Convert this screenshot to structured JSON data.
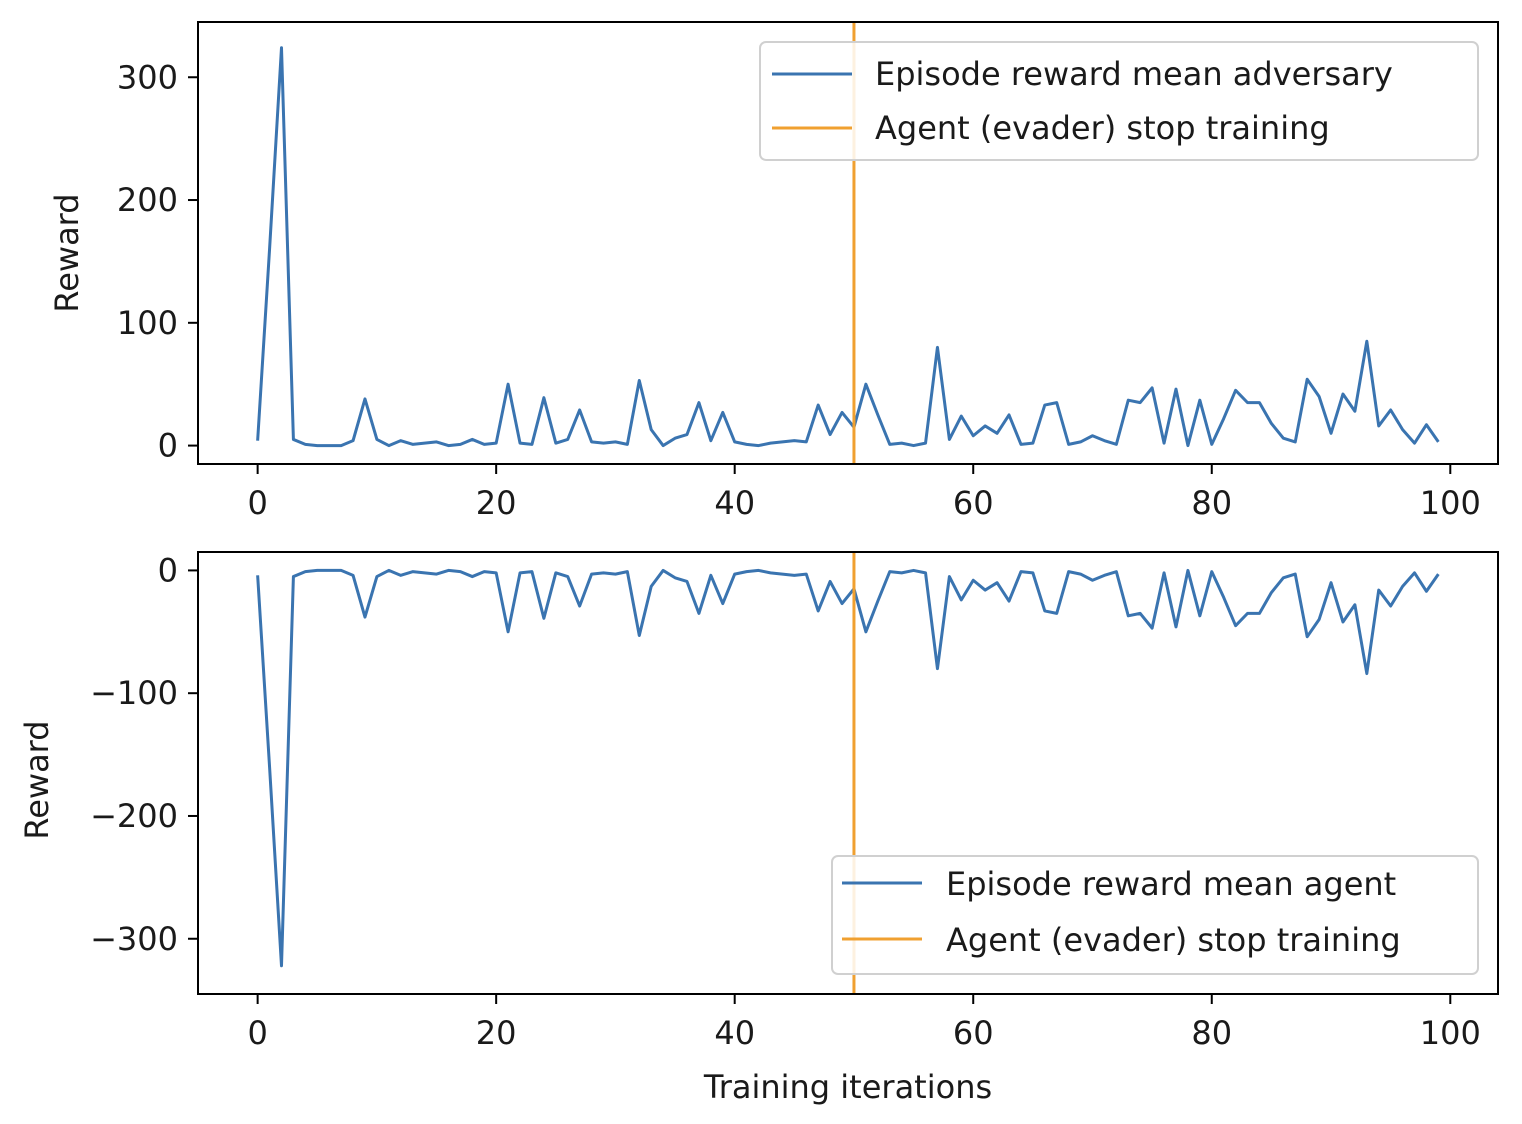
{
  "chart_data": [
    {
      "type": "line",
      "ylabel": "Reward",
      "xlabel": "",
      "xlim": [
        -5,
        104
      ],
      "ylim": [
        -15,
        345
      ],
      "xticks": [
        "0",
        "20",
        "40",
        "60",
        "80",
        "100"
      ],
      "yticks": [
        "0",
        "100",
        "200",
        "300"
      ],
      "legend_position": "upper right",
      "series": [
        {
          "name": "Episode reward mean adversary",
          "color": "#3a74b0",
          "x": [
            0,
            1,
            2,
            3,
            4,
            5,
            6,
            7,
            8,
            9,
            10,
            11,
            12,
            13,
            14,
            15,
            16,
            17,
            18,
            19,
            20,
            21,
            22,
            23,
            24,
            25,
            26,
            27,
            28,
            29,
            30,
            31,
            32,
            33,
            34,
            35,
            36,
            37,
            38,
            39,
            40,
            41,
            42,
            43,
            44,
            45,
            46,
            47,
            48,
            49,
            50,
            51,
            52,
            53,
            54,
            55,
            56,
            57,
            58,
            59,
            60,
            61,
            62,
            63,
            64,
            65,
            66,
            67,
            68,
            69,
            70,
            71,
            72,
            73,
            74,
            75,
            76,
            77,
            78,
            79,
            80,
            81,
            82,
            83,
            84,
            85,
            86,
            87,
            88,
            89,
            90,
            91,
            92,
            93,
            94,
            95,
            96,
            97,
            98,
            99
          ],
          "y": [
            4,
            160,
            324,
            5,
            1,
            0,
            0,
            0,
            4,
            38,
            5,
            0,
            4,
            1,
            2,
            3,
            0,
            1,
            5,
            1,
            2,
            50,
            2,
            1,
            39,
            2,
            5,
            29,
            3,
            2,
            3,
            1,
            53,
            13,
            0,
            6,
            9,
            35,
            4,
            27,
            3,
            1,
            0,
            2,
            3,
            4,
            3,
            33,
            9,
            27,
            15,
            50,
            25,
            1,
            2,
            0,
            2,
            80,
            5,
            24,
            8,
            16,
            10,
            25,
            1,
            2,
            33,
            35,
            1,
            3,
            8,
            4,
            1,
            37,
            35,
            47,
            2,
            46,
            0,
            37,
            1,
            22,
            45,
            35,
            35,
            18,
            6,
            3,
            54,
            40,
            10,
            42,
            28,
            85,
            16,
            29,
            13,
            2,
            17,
            3
          ]
        },
        {
          "name": "Agent (evader) stop training",
          "color": "#f0a030",
          "vline": 50
        }
      ]
    },
    {
      "type": "line",
      "ylabel": "Reward",
      "xlabel": "Training iterations",
      "xlim": [
        -5,
        104
      ],
      "ylim": [
        -345,
        15
      ],
      "xticks": [
        "0",
        "20",
        "40",
        "60",
        "80",
        "100"
      ],
      "yticks": [
        "0",
        "−100",
        "−200",
        "−300"
      ],
      "legend_position": "lower right",
      "series": [
        {
          "name": "Episode reward mean agent",
          "color": "#3a74b0",
          "x": [
            0,
            1,
            2,
            3,
            4,
            5,
            6,
            7,
            8,
            9,
            10,
            11,
            12,
            13,
            14,
            15,
            16,
            17,
            18,
            19,
            20,
            21,
            22,
            23,
            24,
            25,
            26,
            27,
            28,
            29,
            30,
            31,
            32,
            33,
            34,
            35,
            36,
            37,
            38,
            39,
            40,
            41,
            42,
            43,
            44,
            45,
            46,
            47,
            48,
            49,
            50,
            51,
            52,
            53,
            54,
            55,
            56,
            57,
            58,
            59,
            60,
            61,
            62,
            63,
            64,
            65,
            66,
            67,
            68,
            69,
            70,
            71,
            72,
            73,
            74,
            75,
            76,
            77,
            78,
            79,
            80,
            81,
            82,
            83,
            84,
            85,
            86,
            87,
            88,
            89,
            90,
            91,
            92,
            93,
            94,
            95,
            96,
            97,
            98,
            99
          ],
          "y": [
            -4,
            -160,
            -322,
            -5,
            -1,
            0,
            0,
            0,
            -4,
            -38,
            -5,
            0,
            -4,
            -1,
            -2,
            -3,
            0,
            -1,
            -5,
            -1,
            -2,
            -50,
            -2,
            -1,
            -39,
            -2,
            -5,
            -29,
            -3,
            -2,
            -3,
            -1,
            -53,
            -13,
            0,
            -6,
            -9,
            -35,
            -4,
            -27,
            -3,
            -1,
            0,
            -2,
            -3,
            -4,
            -3,
            -33,
            -9,
            -27,
            -15,
            -50,
            -25,
            -1,
            -2,
            0,
            -2,
            -80,
            -5,
            -24,
            -8,
            -16,
            -10,
            -25,
            -1,
            -2,
            -33,
            -35,
            -1,
            -3,
            -8,
            -4,
            -1,
            -37,
            -35,
            -47,
            -2,
            -46,
            0,
            -37,
            -1,
            -22,
            -45,
            -35,
            -35,
            -18,
            -6,
            -3,
            -54,
            -40,
            -10,
            -42,
            -28,
            -84,
            -16,
            -29,
            -13,
            -2,
            -17,
            -3
          ]
        },
        {
          "name": "Agent (evader) stop training",
          "color": "#f0a030",
          "vline": 50
        }
      ]
    }
  ]
}
